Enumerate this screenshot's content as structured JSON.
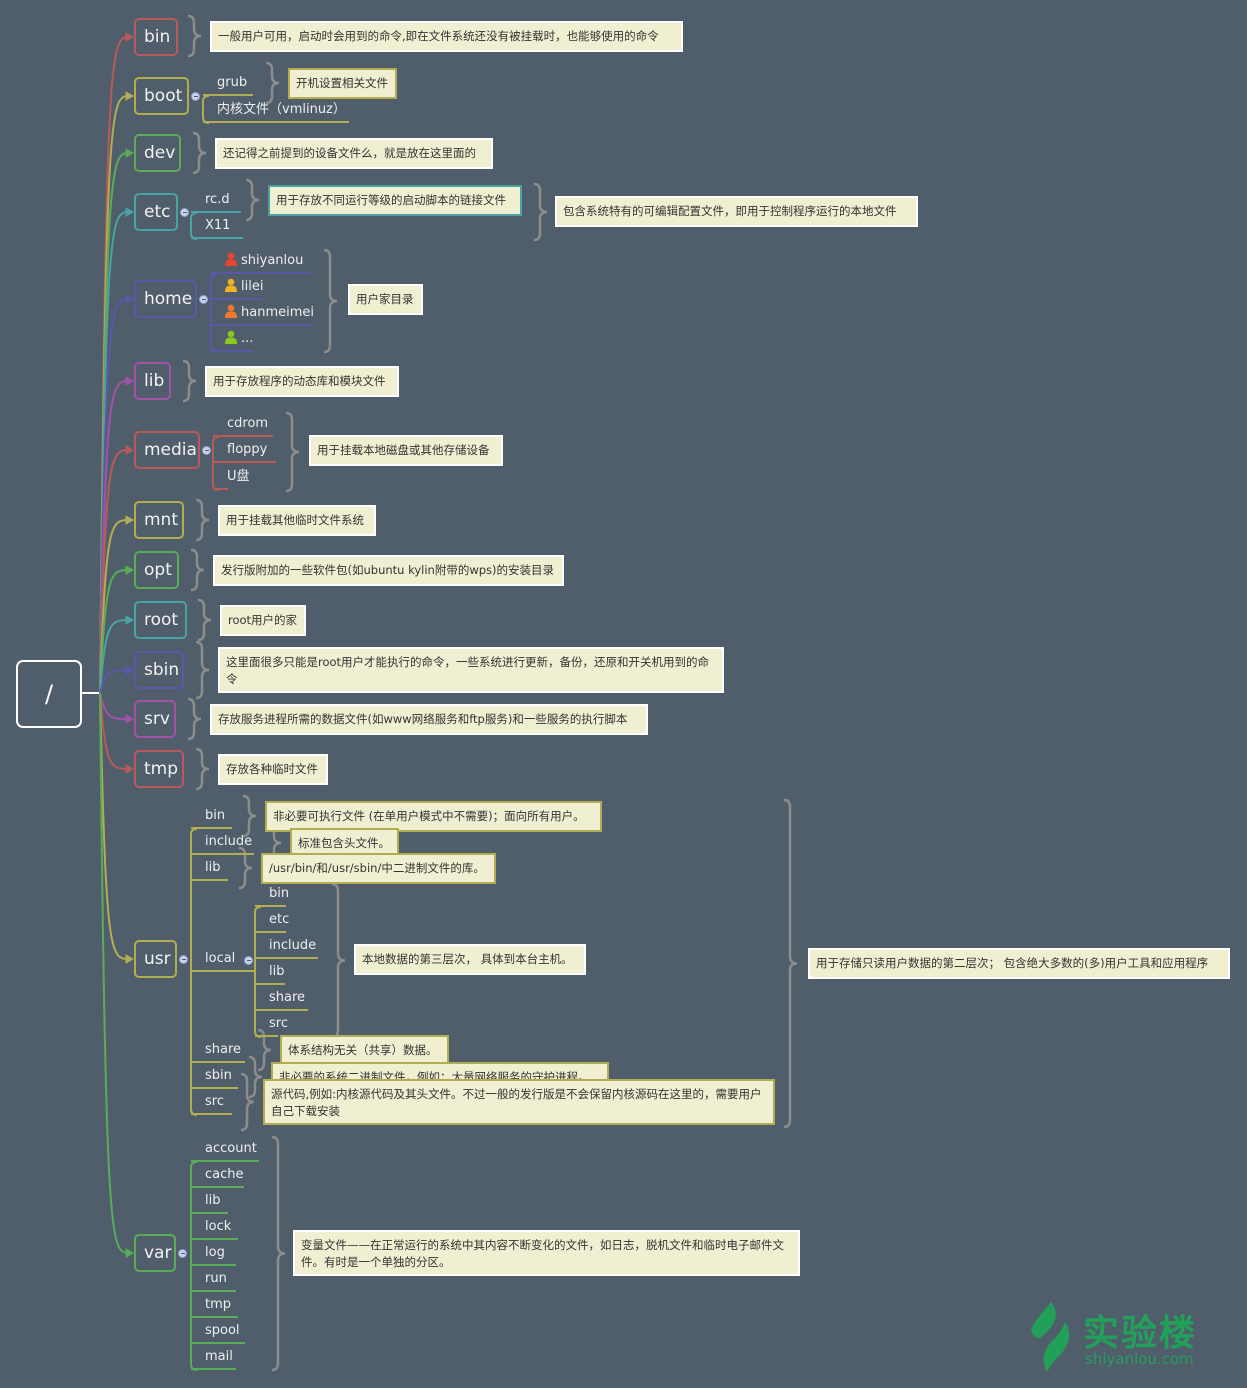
{
  "root": {
    "label": "/"
  },
  "dirs": [
    {
      "label": "bin",
      "color": "#b85a5a",
      "note": "一般用户可用，启动时会用到的命令,即在文件系统还没有被挂载时，也能够使用的命令"
    },
    {
      "label": "boot",
      "color": "#b3ad52",
      "children": [
        {
          "label": "grub",
          "note": "开机设置相关文件"
        },
        {
          "label": "内核文件（vmlinuz）"
        }
      ]
    },
    {
      "label": "dev",
      "color": "#5aac58",
      "note": "还记得之前提到的设备文件么，就是放在这里面的"
    },
    {
      "label": "etc",
      "color": "#4aa3a3",
      "children": [
        {
          "label": "rc.d",
          "note": "用于存放不同运行等级的启动脚本的链接文件"
        },
        {
          "label": "X11"
        }
      ],
      "group_note": "包含系统特有的可编辑配置文件，即用于控制程序运行的本地文件"
    },
    {
      "label": "home",
      "color": "#5b58a8",
      "children": [
        {
          "label": "shiyanlou",
          "icon": "user-icon-red"
        },
        {
          "label": "lilei",
          "icon": "user-icon-yellow"
        },
        {
          "label": "hanmeimei",
          "icon": "user-icon-orange"
        },
        {
          "label": "...",
          "icon": "user-icon-green"
        }
      ],
      "group_note": "用户家目录"
    },
    {
      "label": "lib",
      "color": "#a452a8",
      "note": "用于存放程序的动态库和模块文件"
    },
    {
      "label": "media",
      "color": "#b85a5a",
      "children": [
        {
          "label": "cdrom"
        },
        {
          "label": "floppy"
        },
        {
          "label": "U盘"
        }
      ],
      "group_note": "用于挂载本地磁盘或其他存储设备"
    },
    {
      "label": "mnt",
      "color": "#b3ad52",
      "note": "用于挂载其他临时文件系统"
    },
    {
      "label": "opt",
      "color": "#5aac58",
      "note": "发行版附加的一些软件包(如ubuntu kylin附带的wps)的安装目录"
    },
    {
      "label": "root",
      "color": "#4aa3a3",
      "note": "root用户的家"
    },
    {
      "label": "sbin",
      "color": "#5b58a8",
      "note": "这里面很多只能是root用户才能执行的命令，一些系统进行更新，备份，还原和开关机用到的命令"
    },
    {
      "label": "srv",
      "color": "#a452a8",
      "note": "存放服务进程所需的数据文件(如www网络服务和ftp服务)和一些服务的执行脚本"
    },
    {
      "label": "tmp",
      "color": "#b85a5a",
      "note": "存放各种临时文件"
    },
    {
      "label": "usr",
      "color": "#b3ad52",
      "children": [
        {
          "label": "bin",
          "note": "非必要可执行文件 (在单用户模式中不需要)；面向所有用户。"
        },
        {
          "label": "include",
          "note": "标准包含头文件。"
        },
        {
          "label": "lib",
          "note": "/usr/bin/和/usr/sbin/中二进制文件的库。"
        },
        {
          "label": "local",
          "children": [
            {
              "label": "bin"
            },
            {
              "label": "etc"
            },
            {
              "label": "include"
            },
            {
              "label": "lib"
            },
            {
              "label": "share"
            },
            {
              "label": "src"
            }
          ],
          "group_note": "本地数据的第三层次， 具体到本台主机。"
        },
        {
          "label": "share",
          "note": "体系结构无关（共享）数据。"
        },
        {
          "label": "sbin",
          "note": "非必要的系统二进制文件，例如：大量网络服务的守护进程。"
        },
        {
          "label": "src",
          "note": "源代码,例如:内核源代码及其头文件。不过一般的发行版是不会保留内核源码在这里的，需要用户自己下载安装"
        }
      ],
      "group_note": "用于存储只读用户数据的第二层次； 包含绝大多数的(多)用户工具和应用程序"
    },
    {
      "label": "var",
      "color": "#5aac58",
      "children": [
        {
          "label": "account"
        },
        {
          "label": "cache"
        },
        {
          "label": "lib"
        },
        {
          "label": "lock"
        },
        {
          "label": "log"
        },
        {
          "label": "run"
        },
        {
          "label": "tmp"
        },
        {
          "label": "spool"
        },
        {
          "label": "mail"
        }
      ],
      "group_note": "变量文件——在正常运行的系统中其内容不断变化的文件，如日志，脱机文件和临时电子邮件文件。有时是一个单独的分区。"
    }
  ],
  "logo": {
    "name": "实验楼",
    "domain": "shiyanlou.com",
    "color": "#22a05a"
  },
  "colors": {
    "background": "#505e6b",
    "note_fill": "#f0efd2",
    "brace": "#8c8c8c"
  }
}
